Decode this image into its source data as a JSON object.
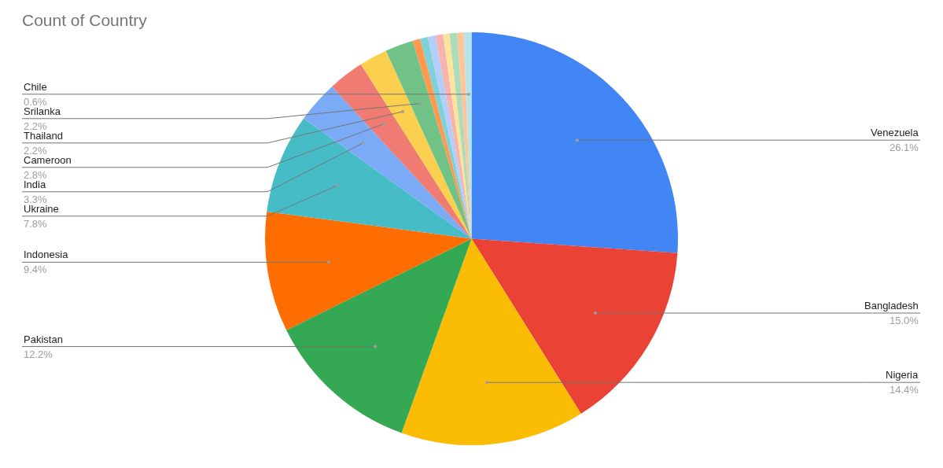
{
  "chart_data": {
    "type": "pie",
    "title": "Count of Country",
    "categories": [
      "Venezuela",
      "Bangladesh",
      "Nigeria",
      "Pakistan",
      "Indonesia",
      "Ukraine",
      "India",
      "Cameroon",
      "Thailand",
      "Srilanka",
      null,
      null,
      null,
      null,
      null,
      null,
      null,
      "Chile"
    ],
    "values": [
      26.1,
      15.0,
      14.4,
      12.2,
      9.4,
      7.8,
      3.3,
      2.8,
      2.2,
      2.2,
      0.6,
      0.6,
      0.6,
      0.6,
      0.5,
      0.6,
      0.5,
      0.6
    ],
    "value_labels": [
      "26.1%",
      "15.0%",
      "14.4%",
      "12.2%",
      "9.4%",
      "7.8%",
      "3.3%",
      "2.8%",
      "2.2%",
      "2.2%",
      null,
      null,
      null,
      null,
      null,
      null,
      null,
      "0.6%"
    ],
    "colors": [
      "#4285f4",
      "#ea4335",
      "#fbbc04",
      "#34a853",
      "#ff6d01",
      "#46bdc6",
      "#7baaf7",
      "#f07b72",
      "#fcd04f",
      "#71c287",
      "#ff994d",
      "#7ed1d7",
      "#b3cefb",
      "#f7b4ae",
      "#fde49b",
      "#aedcba",
      "#ffc599",
      "#b5e5e8"
    ],
    "legend": false
  }
}
